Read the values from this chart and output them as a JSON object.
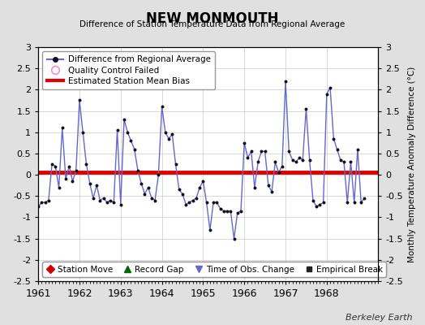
{
  "title": "NEW MONMOUTH",
  "subtitle": "Difference of Station Temperature Data from Regional Average",
  "ylabel": "Monthly Temperature Anomaly Difference (°C)",
  "xlabel_note": "Berkeley Earth",
  "bias": 0.05,
  "ylim": [
    -2.5,
    3.0
  ],
  "xlim": [
    1961.0,
    1969.25
  ],
  "yticks": [
    -2.5,
    -2,
    -1.5,
    -1,
    -0.5,
    0,
    0.5,
    1,
    1.5,
    2,
    2.5,
    3
  ],
  "xticks": [
    1961,
    1962,
    1963,
    1964,
    1965,
    1966,
    1967,
    1968
  ],
  "bg_color": "#e0e0e0",
  "plot_bg_color": "#ffffff",
  "grid_color": "#cccccc",
  "line_color": "#6666cc",
  "dot_color": "#111111",
  "bias_color": "#dd0000",
  "times": [
    1961.0,
    1961.083,
    1961.167,
    1961.25,
    1961.333,
    1961.417,
    1961.5,
    1961.583,
    1961.667,
    1961.75,
    1961.833,
    1961.917,
    1962.0,
    1962.083,
    1962.167,
    1962.25,
    1962.333,
    1962.417,
    1962.5,
    1962.583,
    1962.667,
    1962.75,
    1962.833,
    1962.917,
    1963.0,
    1963.083,
    1963.167,
    1963.25,
    1963.333,
    1963.417,
    1963.5,
    1963.583,
    1963.667,
    1963.75,
    1963.833,
    1963.917,
    1964.0,
    1964.083,
    1964.167,
    1964.25,
    1964.333,
    1964.417,
    1964.5,
    1964.583,
    1964.667,
    1964.75,
    1964.833,
    1964.917,
    1965.0,
    1965.083,
    1965.167,
    1965.25,
    1965.333,
    1965.417,
    1965.5,
    1965.583,
    1965.667,
    1965.75,
    1965.833,
    1965.917,
    1966.0,
    1966.083,
    1966.167,
    1966.25,
    1966.333,
    1966.417,
    1966.5,
    1966.583,
    1966.667,
    1966.75,
    1966.833,
    1966.917,
    1967.0,
    1967.083,
    1967.167,
    1967.25,
    1967.333,
    1967.417,
    1967.5,
    1967.583,
    1967.667,
    1967.75,
    1967.833,
    1967.917,
    1968.0,
    1968.083,
    1968.167,
    1968.25,
    1968.333,
    1968.417,
    1968.5,
    1968.583,
    1968.667,
    1968.75,
    1968.833,
    1968.917
  ],
  "values": [
    -0.75,
    -0.65,
    -0.65,
    -0.6,
    0.25,
    0.2,
    -0.3,
    1.1,
    -0.1,
    0.2,
    -0.15,
    0.1,
    1.75,
    1.0,
    0.25,
    -0.2,
    -0.55,
    -0.25,
    -0.6,
    -0.55,
    -0.65,
    -0.6,
    -0.65,
    1.05,
    -0.7,
    1.3,
    1.0,
    0.8,
    0.6,
    0.1,
    -0.2,
    -0.45,
    -0.3,
    -0.55,
    -0.6,
    0.0,
    1.6,
    1.0,
    0.85,
    0.95,
    0.25,
    -0.35,
    -0.45,
    -0.7,
    -0.65,
    -0.6,
    -0.55,
    -0.3,
    -0.15,
    -0.65,
    -1.3,
    -0.65,
    -0.65,
    -0.8,
    -0.85,
    -0.85,
    -0.85,
    -1.5,
    -0.9,
    -0.85,
    0.75,
    0.4,
    0.55,
    -0.3,
    0.3,
    0.55,
    0.55,
    -0.25,
    -0.4,
    0.3,
    0.05,
    0.2,
    2.2,
    0.55,
    0.35,
    0.3,
    0.4,
    0.35,
    1.55,
    0.35,
    -0.6,
    -0.75,
    -0.7,
    -0.65,
    1.9,
    2.05,
    0.85,
    0.6,
    0.35,
    0.3,
    -0.65,
    0.3,
    -0.65,
    0.6,
    -0.65,
    -0.55
  ]
}
